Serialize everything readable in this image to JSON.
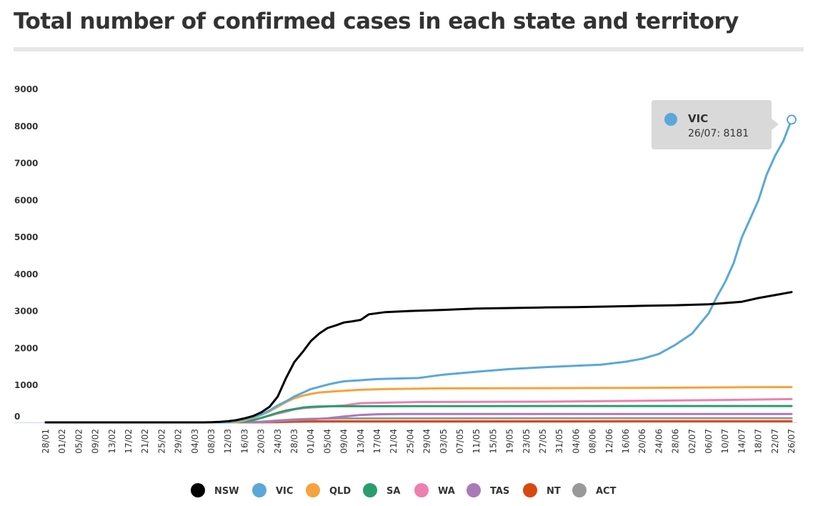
{
  "chart_data": {
    "type": "line",
    "title": "Total number of confirmed cases in each state and territory",
    "xlabel": "",
    "ylabel": "",
    "ylim": [
      0,
      9000
    ],
    "yticks": [
      0,
      1000,
      2000,
      3000,
      4000,
      5000,
      6000,
      7000,
      8000,
      9000
    ],
    "x_tick_labels": [
      "28/01",
      "01/02",
      "05/02",
      "09/02",
      "13/02",
      "17/02",
      "21/02",
      "25/02",
      "29/02",
      "04/03",
      "08/03",
      "12/03",
      "16/03",
      "20/03",
      "24/03",
      "28/03",
      "01/04",
      "05/04",
      "09/04",
      "13/04",
      "17/04",
      "21/04",
      "25/04",
      "29/04",
      "03/05",
      "07/05",
      "11/05",
      "15/05",
      "19/05",
      "23/05",
      "27/05",
      "31/05",
      "04/06",
      "08/06",
      "12/06",
      "16/06",
      "20/06",
      "24/06",
      "28/06",
      "02/07",
      "06/07",
      "10/07",
      "14/07",
      "18/07",
      "22/07",
      "26/07"
    ],
    "x_day_range": [
      0,
      180
    ],
    "x_tick_interval_days": 4,
    "legend_position": "bottom",
    "series": [
      {
        "name": "NSW",
        "color": "#000000",
        "points": [
          [
            0,
            0
          ],
          [
            38,
            0
          ],
          [
            40,
            5
          ],
          [
            42,
            15
          ],
          [
            44,
            30
          ],
          [
            46,
            60
          ],
          [
            48,
            110
          ],
          [
            50,
            170
          ],
          [
            52,
            270
          ],
          [
            54,
            420
          ],
          [
            56,
            700
          ],
          [
            58,
            1200
          ],
          [
            60,
            1630
          ],
          [
            62,
            1900
          ],
          [
            64,
            2200
          ],
          [
            66,
            2400
          ],
          [
            68,
            2550
          ],
          [
            70,
            2620
          ],
          [
            72,
            2700
          ],
          [
            74,
            2730
          ],
          [
            76,
            2770
          ],
          [
            78,
            2920
          ],
          [
            82,
            2980
          ],
          [
            88,
            3010
          ],
          [
            96,
            3040
          ],
          [
            104,
            3075
          ],
          [
            112,
            3090
          ],
          [
            120,
            3105
          ],
          [
            128,
            3115
          ],
          [
            136,
            3130
          ],
          [
            144,
            3150
          ],
          [
            152,
            3165
          ],
          [
            160,
            3190
          ],
          [
            168,
            3260
          ],
          [
            172,
            3360
          ],
          [
            176,
            3440
          ],
          [
            180,
            3520
          ]
        ]
      },
      {
        "name": "VIC",
        "color": "#5aa8d8",
        "points": [
          [
            0,
            0
          ],
          [
            44,
            0
          ],
          [
            46,
            30
          ],
          [
            48,
            80
          ],
          [
            50,
            140
          ],
          [
            52,
            210
          ],
          [
            54,
            320
          ],
          [
            56,
            460
          ],
          [
            58,
            570
          ],
          [
            60,
            700
          ],
          [
            62,
            800
          ],
          [
            64,
            900
          ],
          [
            66,
            960
          ],
          [
            68,
            1020
          ],
          [
            70,
            1070
          ],
          [
            72,
            1110
          ],
          [
            76,
            1140
          ],
          [
            80,
            1170
          ],
          [
            90,
            1200
          ],
          [
            96,
            1290
          ],
          [
            104,
            1370
          ],
          [
            112,
            1440
          ],
          [
            120,
            1490
          ],
          [
            128,
            1530
          ],
          [
            134,
            1560
          ],
          [
            140,
            1640
          ],
          [
            144,
            1720
          ],
          [
            148,
            1850
          ],
          [
            152,
            2100
          ],
          [
            156,
            2400
          ],
          [
            160,
            2950
          ],
          [
            162,
            3400
          ],
          [
            164,
            3800
          ],
          [
            166,
            4300
          ],
          [
            168,
            5000
          ],
          [
            170,
            5500
          ],
          [
            172,
            6000
          ],
          [
            174,
            6700
          ],
          [
            176,
            7200
          ],
          [
            178,
            7600
          ],
          [
            180,
            8181
          ]
        ]
      },
      {
        "name": "QLD",
        "color": "#f7a23c",
        "points": [
          [
            0,
            0
          ],
          [
            46,
            0
          ],
          [
            48,
            50
          ],
          [
            50,
            120
          ],
          [
            52,
            200
          ],
          [
            54,
            300
          ],
          [
            56,
            420
          ],
          [
            58,
            550
          ],
          [
            60,
            650
          ],
          [
            62,
            720
          ],
          [
            64,
            770
          ],
          [
            66,
            810
          ],
          [
            70,
            840
          ],
          [
            76,
            880
          ],
          [
            82,
            900
          ],
          [
            96,
            920
          ],
          [
            140,
            930
          ],
          [
            170,
            950
          ],
          [
            180,
            955
          ]
        ]
      },
      {
        "name": "SA",
        "color": "#2a9d6e",
        "points": [
          [
            0,
            0
          ],
          [
            46,
            0
          ],
          [
            48,
            20
          ],
          [
            50,
            60
          ],
          [
            52,
            120
          ],
          [
            54,
            190
          ],
          [
            56,
            260
          ],
          [
            58,
            320
          ],
          [
            60,
            360
          ],
          [
            62,
            400
          ],
          [
            64,
            420
          ],
          [
            66,
            430
          ],
          [
            70,
            436
          ],
          [
            90,
            440
          ],
          [
            180,
            443
          ]
        ]
      },
      {
        "name": "WA",
        "color": "#ee7fae",
        "points": [
          [
            0,
            0
          ],
          [
            46,
            0
          ],
          [
            48,
            20
          ],
          [
            50,
            60
          ],
          [
            52,
            120
          ],
          [
            54,
            180
          ],
          [
            56,
            240
          ],
          [
            58,
            290
          ],
          [
            60,
            350
          ],
          [
            62,
            380
          ],
          [
            64,
            400
          ],
          [
            68,
            430
          ],
          [
            72,
            460
          ],
          [
            76,
            520
          ],
          [
            90,
            550
          ],
          [
            120,
            560
          ],
          [
            140,
            580
          ],
          [
            160,
            600
          ],
          [
            180,
            630
          ]
        ]
      },
      {
        "name": "TAS",
        "color": "#a97ab8",
        "points": [
          [
            0,
            0
          ],
          [
            48,
            0
          ],
          [
            52,
            10
          ],
          [
            56,
            30
          ],
          [
            60,
            60
          ],
          [
            64,
            80
          ],
          [
            68,
            110
          ],
          [
            72,
            160
          ],
          [
            76,
            200
          ],
          [
            80,
            220
          ],
          [
            86,
            227
          ],
          [
            180,
            228
          ]
        ]
      },
      {
        "name": "NT",
        "color": "#d9480f",
        "points": [
          [
            0,
            0
          ],
          [
            50,
            0
          ],
          [
            56,
            5
          ],
          [
            60,
            20
          ],
          [
            64,
            27
          ],
          [
            70,
            29
          ],
          [
            180,
            30
          ]
        ]
      },
      {
        "name": "ACT",
        "color": "#999999",
        "points": [
          [
            0,
            0
          ],
          [
            48,
            0
          ],
          [
            52,
            20
          ],
          [
            56,
            50
          ],
          [
            60,
            80
          ],
          [
            64,
            96
          ],
          [
            68,
            103
          ],
          [
            72,
            106
          ],
          [
            160,
            113
          ],
          [
            180,
            113
          ]
        ]
      }
    ],
    "tooltip": {
      "series": "VIC",
      "label": "26/07: 8181",
      "color": "#5aa8d8",
      "day": 180,
      "value": 8181
    }
  }
}
